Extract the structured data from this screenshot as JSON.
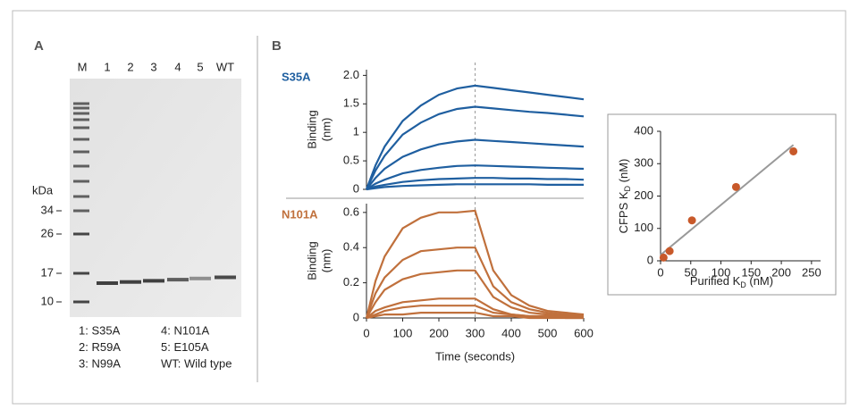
{
  "panel_labels": [
    "A",
    "B"
  ],
  "panel_a": {
    "lanes": [
      "M",
      "1",
      "2",
      "3",
      "4",
      "5",
      "WT"
    ],
    "unit": "kDa",
    "markers": [
      "34",
      "26",
      "17",
      "10"
    ],
    "legend": [
      "1: S35A",
      "4: N101A",
      "2: R59A",
      "5: E105A",
      "3: N99A",
      "WT: Wild type"
    ]
  },
  "chart_data": [
    {
      "type": "line",
      "title": "S35A",
      "ylabel": [
        "Binding",
        "(nm)"
      ],
      "xlim": [
        0,
        600
      ],
      "ylim": [
        0,
        2.1
      ],
      "yticks": [
        0,
        0.5,
        1,
        1.5,
        {
          "value": 2,
          "label": "2.0"
        }
      ],
      "vline": 300,
      "x": [
        0,
        25,
        50,
        100,
        150,
        200,
        250,
        300,
        350,
        400,
        450,
        500,
        550,
        600
      ],
      "series": [
        {
          "color": "#1f5fa0",
          "values": [
            0,
            0.42,
            0.75,
            1.2,
            1.47,
            1.66,
            1.77,
            1.82,
            1.78,
            1.74,
            1.7,
            1.66,
            1.62,
            1.58
          ]
        },
        {
          "color": "#1f5fa0",
          "values": [
            0,
            0.33,
            0.59,
            0.96,
            1.17,
            1.32,
            1.41,
            1.45,
            1.42,
            1.39,
            1.36,
            1.34,
            1.31,
            1.28
          ]
        },
        {
          "color": "#1f5fa0",
          "values": [
            0,
            0.2,
            0.36,
            0.57,
            0.7,
            0.79,
            0.84,
            0.87,
            0.85,
            0.83,
            0.81,
            0.79,
            0.77,
            0.75
          ]
        },
        {
          "color": "#1f5fa0",
          "values": [
            0,
            0.1,
            0.17,
            0.28,
            0.34,
            0.38,
            0.41,
            0.42,
            0.41,
            0.4,
            0.39,
            0.38,
            0.37,
            0.36
          ]
        },
        {
          "color": "#1f5fa0",
          "values": [
            0,
            0.05,
            0.08,
            0.13,
            0.16,
            0.18,
            0.19,
            0.2,
            0.2,
            0.19,
            0.19,
            0.18,
            0.18,
            0.17
          ]
        },
        {
          "color": "#1f5fa0",
          "values": [
            0,
            0.02,
            0.04,
            0.06,
            0.07,
            0.08,
            0.09,
            0.09,
            0.09,
            0.09,
            0.09,
            0.08,
            0.08,
            0.08
          ]
        }
      ]
    },
    {
      "type": "line",
      "title": "N101A",
      "ylabel": [
        "Binding",
        "(nm)"
      ],
      "xlabel": "Time (seconds)",
      "xlim": [
        0,
        600
      ],
      "ylim": [
        0,
        0.65
      ],
      "xticks": [
        0,
        100,
        200,
        300,
        400,
        500,
        600
      ],
      "yticks": [
        0,
        0.2,
        0.4,
        0.6
      ],
      "vline": 300,
      "x": [
        0,
        25,
        50,
        100,
        150,
        200,
        250,
        300,
        350,
        400,
        450,
        500,
        550,
        600
      ],
      "series": [
        {
          "color": "#c0703c",
          "values": [
            0,
            0.21,
            0.35,
            0.51,
            0.57,
            0.6,
            0.6,
            0.61,
            0.27,
            0.13,
            0.07,
            0.04,
            0.03,
            0.02
          ]
        },
        {
          "color": "#c0703c",
          "values": [
            0,
            0.14,
            0.23,
            0.33,
            0.38,
            0.39,
            0.4,
            0.4,
            0.18,
            0.09,
            0.05,
            0.03,
            0.02,
            0.02
          ]
        },
        {
          "color": "#c0703c",
          "values": [
            0,
            0.09,
            0.16,
            0.22,
            0.25,
            0.26,
            0.27,
            0.27,
            0.12,
            0.06,
            0.03,
            0.02,
            0.01,
            0.01
          ]
        },
        {
          "color": "#c0703c",
          "values": [
            0,
            0.04,
            0.06,
            0.09,
            0.1,
            0.11,
            0.11,
            0.11,
            0.05,
            0.02,
            0.01,
            0.01,
            0.01,
            0.01
          ]
        },
        {
          "color": "#c0703c",
          "values": [
            0,
            0.02,
            0.04,
            0.06,
            0.07,
            0.07,
            0.07,
            0.07,
            0.03,
            0.02,
            0.01,
            0.01,
            0,
            0
          ]
        },
        {
          "color": "#c0703c",
          "values": [
            0,
            0.01,
            0.02,
            0.02,
            0.03,
            0.03,
            0.03,
            0.03,
            0.01,
            0.01,
            0,
            0,
            0,
            0
          ]
        }
      ]
    },
    {
      "type": "scatter",
      "xlabel": {
        "text": "Purified K",
        "sub": "D",
        "unit": " (nM)"
      },
      "ylabel": {
        "text": "CFPS K",
        "sub": "D",
        "unit": " (nM)"
      },
      "xlim": [
        0,
        265
      ],
      "ylim": [
        0,
        400
      ],
      "xticks": [
        0,
        50,
        100,
        150,
        200,
        250
      ],
      "yticks": [
        0,
        100,
        200,
        300,
        400
      ],
      "color": "#c8592a",
      "x": [
        5,
        15,
        52,
        125,
        220
      ],
      "y": [
        10,
        30,
        125,
        228,
        338
      ],
      "fit": {
        "color": "#999999",
        "x": [
          0,
          220
        ],
        "y": [
          18,
          358
        ]
      }
    }
  ]
}
